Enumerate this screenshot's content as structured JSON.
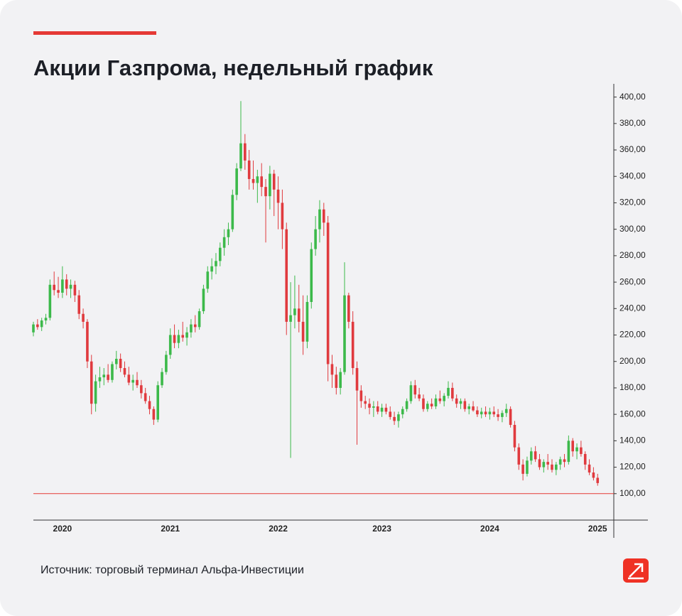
{
  "header": {
    "title": "Акции Газпрома, недельный график"
  },
  "chart_data": {
    "type": "candlestick",
    "categories": [
      null,
      null,
      null,
      null,
      null,
      null,
      null,
      "2020",
      null,
      null,
      null,
      null,
      null,
      null,
      null,
      null,
      null,
      null,
      null,
      null,
      null,
      null,
      null,
      null,
      null,
      null,
      null,
      null,
      null,
      null,
      null,
      null,
      null,
      "2021",
      null,
      null,
      null,
      null,
      null,
      null,
      null,
      null,
      null,
      null,
      null,
      null,
      null,
      null,
      null,
      null,
      null,
      null,
      null,
      null,
      null,
      null,
      null,
      null,
      null,
      "2022",
      null,
      null,
      null,
      null,
      null,
      null,
      null,
      null,
      null,
      null,
      null,
      null,
      null,
      null,
      null,
      null,
      null,
      null,
      null,
      null,
      null,
      null,
      null,
      null,
      "2023",
      null,
      null,
      null,
      null,
      null,
      null,
      null,
      null,
      null,
      null,
      null,
      null,
      null,
      null,
      null,
      null,
      null,
      null,
      null,
      null,
      null,
      null,
      null,
      null,
      null,
      "2024",
      null,
      null,
      null,
      null,
      null,
      null,
      null,
      null,
      null,
      null,
      null,
      null,
      null,
      null,
      null,
      null,
      null,
      null,
      null,
      null,
      null,
      null,
      null,
      null,
      null,
      "2025"
    ],
    "values": [
      [
        222,
        230,
        219,
        228
      ],
      [
        228,
        232,
        224,
        226
      ],
      [
        226,
        233,
        223,
        231
      ],
      [
        231,
        236,
        228,
        233
      ],
      [
        233,
        262,
        231,
        258
      ],
      [
        258,
        268,
        250,
        254
      ],
      [
        254,
        264,
        248,
        252
      ],
      [
        252,
        272,
        248,
        262
      ],
      [
        262,
        266,
        250,
        255
      ],
      [
        255,
        262,
        248,
        258
      ],
      [
        258,
        261,
        245,
        250
      ],
      [
        250,
        254,
        232,
        236
      ],
      [
        236,
        240,
        225,
        230
      ],
      [
        230,
        232,
        195,
        200
      ],
      [
        200,
        205,
        160,
        168
      ],
      [
        168,
        190,
        162,
        185
      ],
      [
        185,
        196,
        180,
        188
      ],
      [
        188,
        195,
        182,
        190
      ],
      [
        190,
        198,
        184,
        186
      ],
      [
        186,
        200,
        184,
        198
      ],
      [
        198,
        208,
        194,
        202
      ],
      [
        202,
        206,
        192,
        195
      ],
      [
        195,
        200,
        188,
        190
      ],
      [
        190,
        196,
        182,
        184
      ],
      [
        184,
        190,
        178,
        186
      ],
      [
        186,
        192,
        180,
        182
      ],
      [
        182,
        186,
        172,
        176
      ],
      [
        176,
        180,
        168,
        170
      ],
      [
        170,
        174,
        160,
        164
      ],
      [
        164,
        166,
        152,
        156
      ],
      [
        156,
        185,
        154,
        182
      ],
      [
        182,
        195,
        180,
        192
      ],
      [
        192,
        208,
        190,
        205
      ],
      [
        205,
        225,
        202,
        220
      ],
      [
        220,
        228,
        210,
        214
      ],
      [
        214,
        224,
        210,
        220
      ],
      [
        220,
        230,
        215,
        218
      ],
      [
        218,
        226,
        212,
        222
      ],
      [
        222,
        232,
        218,
        228
      ],
      [
        228,
        235,
        222,
        226
      ],
      [
        226,
        240,
        224,
        238
      ],
      [
        238,
        258,
        236,
        255
      ],
      [
        255,
        272,
        252,
        268
      ],
      [
        268,
        278,
        262,
        272
      ],
      [
        272,
        282,
        266,
        276
      ],
      [
        276,
        290,
        272,
        286
      ],
      [
        286,
        300,
        280,
        294
      ],
      [
        294,
        305,
        288,
        300
      ],
      [
        300,
        330,
        298,
        326
      ],
      [
        326,
        350,
        322,
        346
      ],
      [
        346,
        397,
        344,
        365
      ],
      [
        365,
        372,
        345,
        352
      ],
      [
        352,
        360,
        330,
        338
      ],
      [
        338,
        352,
        330,
        335
      ],
      [
        335,
        345,
        320,
        340
      ],
      [
        340,
        350,
        325,
        332
      ],
      [
        332,
        338,
        290,
        325
      ],
      [
        325,
        348,
        315,
        342
      ],
      [
        342,
        345,
        310,
        330
      ],
      [
        330,
        340,
        300,
        320
      ],
      [
        320,
        330,
        285,
        300
      ],
      [
        300,
        305,
        220,
        230
      ],
      [
        230,
        260,
        127,
        235
      ],
      [
        235,
        265,
        225,
        240
      ],
      [
        240,
        258,
        222,
        230
      ],
      [
        230,
        250,
        205,
        215
      ],
      [
        215,
        250,
        210,
        245
      ],
      [
        245,
        290,
        240,
        285
      ],
      [
        285,
        310,
        280,
        300
      ],
      [
        300,
        322,
        290,
        315
      ],
      [
        315,
        320,
        295,
        305
      ],
      [
        305,
        310,
        185,
        198
      ],
      [
        198,
        205,
        180,
        190
      ],
      [
        190,
        196,
        175,
        180
      ],
      [
        180,
        195,
        175,
        192
      ],
      [
        192,
        275,
        190,
        250
      ],
      [
        250,
        252,
        225,
        230
      ],
      [
        230,
        238,
        190,
        195
      ],
      [
        195,
        200,
        137,
        178
      ],
      [
        178,
        182,
        165,
        170
      ],
      [
        170,
        174,
        164,
        168
      ],
      [
        168,
        172,
        160,
        165
      ],
      [
        165,
        170,
        158,
        166
      ],
      [
        166,
        170,
        160,
        162
      ],
      [
        162,
        168,
        158,
        165
      ],
      [
        165,
        168,
        160,
        162
      ],
      [
        162,
        166,
        156,
        158
      ],
      [
        158,
        162,
        152,
        155
      ],
      [
        155,
        162,
        150,
        160
      ],
      [
        160,
        166,
        157,
        164
      ],
      [
        164,
        172,
        162,
        170
      ],
      [
        170,
        185,
        168,
        182
      ],
      [
        182,
        186,
        172,
        175
      ],
      [
        175,
        180,
        170,
        172
      ],
      [
        172,
        175,
        162,
        164
      ],
      [
        164,
        170,
        162,
        168
      ],
      [
        168,
        172,
        164,
        166
      ],
      [
        166,
        175,
        164,
        172
      ],
      [
        172,
        178,
        168,
        170
      ],
      [
        170,
        176,
        166,
        174
      ],
      [
        174,
        185,
        172,
        180
      ],
      [
        180,
        184,
        170,
        172
      ],
      [
        172,
        175,
        165,
        168
      ],
      [
        168,
        172,
        164,
        170
      ],
      [
        170,
        172,
        162,
        164
      ],
      [
        164,
        168,
        160,
        166
      ],
      [
        166,
        170,
        162,
        163
      ],
      [
        163,
        166,
        158,
        160
      ],
      [
        160,
        165,
        157,
        162
      ],
      [
        162,
        166,
        158,
        160
      ],
      [
        160,
        165,
        156,
        162
      ],
      [
        162,
        166,
        158,
        160
      ],
      [
        160,
        164,
        155,
        158
      ],
      [
        158,
        163,
        154,
        161
      ],
      [
        161,
        168,
        158,
        164
      ],
      [
        164,
        166,
        150,
        152
      ],
      [
        152,
        155,
        132,
        135
      ],
      [
        135,
        138,
        118,
        122
      ],
      [
        122,
        126,
        110,
        115
      ],
      [
        115,
        128,
        113,
        125
      ],
      [
        125,
        135,
        122,
        132
      ],
      [
        132,
        136,
        124,
        126
      ],
      [
        126,
        130,
        118,
        120
      ],
      [
        120,
        126,
        116,
        124
      ],
      [
        124,
        130,
        118,
        122
      ],
      [
        122,
        126,
        116,
        118
      ],
      [
        118,
        124,
        114,
        122
      ],
      [
        122,
        128,
        118,
        126
      ],
      [
        126,
        130,
        120,
        124
      ],
      [
        124,
        144,
        122,
        140
      ],
      [
        140,
        142,
        128,
        132
      ],
      [
        132,
        138,
        126,
        135
      ],
      [
        135,
        140,
        128,
        130
      ],
      [
        130,
        132,
        118,
        122
      ],
      [
        122,
        126,
        114,
        116
      ],
      [
        116,
        120,
        110,
        112
      ],
      [
        112,
        115,
        106,
        108
      ]
    ],
    "up_color": "#3cb94a",
    "down_color": "#e03a3e",
    "ylim": [
      80,
      410
    ],
    "yticks": [
      {
        "value": 100,
        "label": "100,00"
      },
      {
        "value": 120,
        "label": "120,00"
      },
      {
        "value": 140,
        "label": "140,00"
      },
      {
        "value": 160,
        "label": "160,00"
      },
      {
        "value": 180,
        "label": "180,00"
      },
      {
        "value": 200,
        "label": "200,00"
      },
      {
        "value": 220,
        "label": "220,00"
      },
      {
        "value": 240,
        "label": "240,00"
      },
      {
        "value": 260,
        "label": "260,00"
      },
      {
        "value": 280,
        "label": "280,00"
      },
      {
        "value": 300,
        "label": "300,00"
      },
      {
        "value": 320,
        "label": "320,00"
      },
      {
        "value": 340,
        "label": "340,00"
      },
      {
        "value": 360,
        "label": "360,00"
      },
      {
        "value": 380,
        "label": "380,00"
      },
      {
        "value": 400,
        "label": "400,00"
      }
    ],
    "reference_line": {
      "value": 100,
      "color": "#e53935"
    }
  },
  "footer": {
    "source": "Источник: торговый терминал Альфа-Инвестиции"
  }
}
